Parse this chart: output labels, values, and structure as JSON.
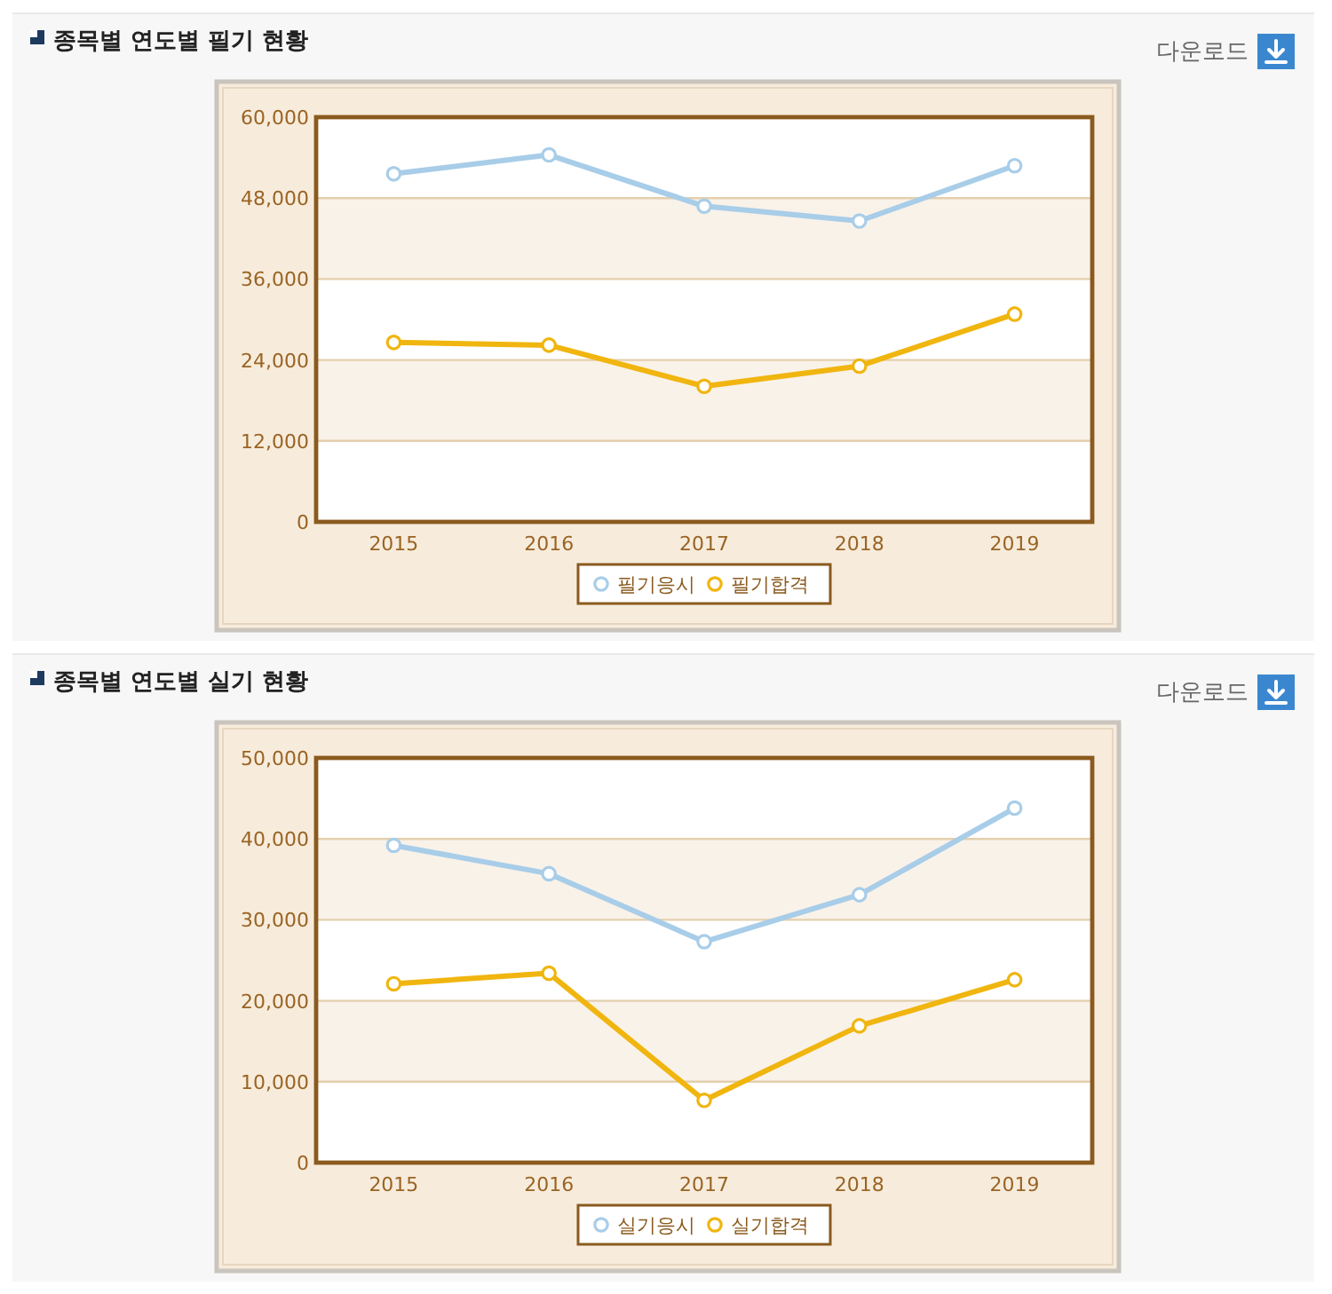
{
  "chart_data": [
    {
      "type": "line",
      "title": "종목별 연도별 필기 현황",
      "annotations": [
        "다운로드"
      ],
      "categories": [
        "2015",
        "2016",
        "2017",
        "2018",
        "2019"
      ],
      "series": [
        {
          "name": "필기응시",
          "color": "#a8cde8",
          "values": [
            51600,
            54400,
            46800,
            44600,
            52800
          ]
        },
        {
          "name": "필기합격",
          "color": "#f0b50f",
          "values": [
            26600,
            26200,
            20100,
            23100,
            30800
          ]
        }
      ],
      "ylim": [
        0,
        60000
      ],
      "yticks": [
        0,
        {
          "value": 12000,
          "label": "12,000"
        },
        {
          "value": 24000,
          "label": "24,000"
        },
        {
          "value": 36000,
          "label": "36,000"
        },
        {
          "value": 48000,
          "label": "48,000"
        },
        {
          "value": 60000,
          "label": "60,000"
        }
      ],
      "grid": "y",
      "legend": "bottom",
      "marker": "circle"
    },
    {
      "type": "line",
      "title": "종목별 연도별 실기 현황",
      "annotations": [
        "다운로드"
      ],
      "categories": [
        "2015",
        "2016",
        "2017",
        "2018",
        "2019"
      ],
      "series": [
        {
          "name": "실기응시",
          "color": "#a8cde8",
          "values": [
            39200,
            35700,
            27300,
            33100,
            43800
          ]
        },
        {
          "name": "실기합격",
          "color": "#f0b50f",
          "values": [
            22100,
            23400,
            7700,
            16900,
            22600
          ]
        }
      ],
      "ylim": [
        0,
        50000
      ],
      "yticks": [
        0,
        {
          "value": 10000,
          "label": "10,000"
        },
        {
          "value": 20000,
          "label": "20,000"
        },
        {
          "value": 30000,
          "label": "30,000"
        },
        {
          "value": 40000,
          "label": "40,000"
        },
        {
          "value": 50000,
          "label": "50,000"
        }
      ],
      "grid": "y",
      "legend": "bottom",
      "marker": "circle"
    }
  ]
}
